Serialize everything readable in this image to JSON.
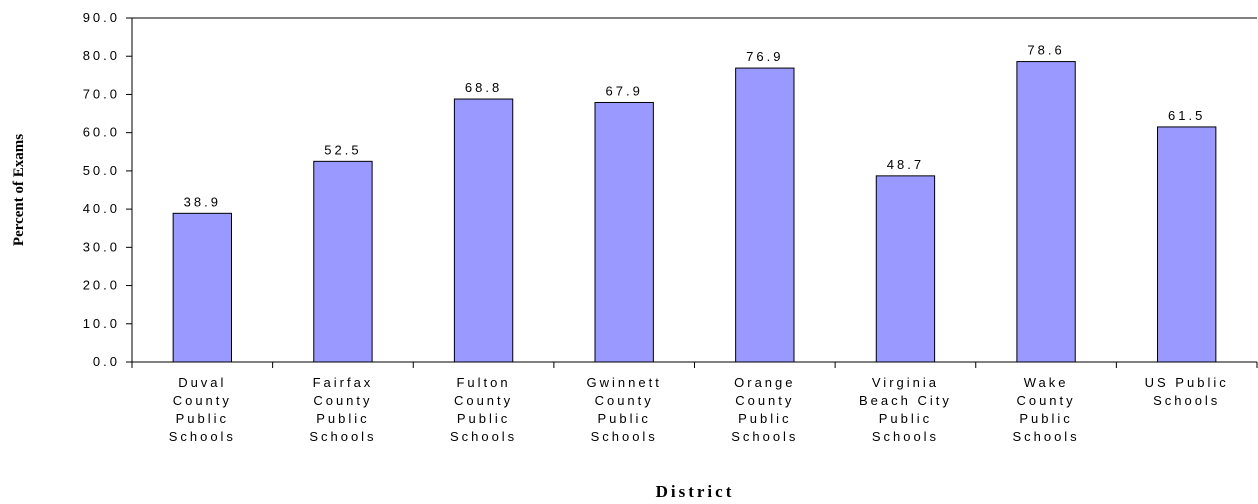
{
  "chart_data": {
    "type": "bar",
    "ylabel": "Percent of Exams",
    "xlabel": "District",
    "ylim": [
      0,
      90
    ],
    "ytick_step": 10,
    "ytick_labels": [
      "0.0",
      "10.0",
      "20.0",
      "30.0",
      "40.0",
      "50.0",
      "60.0",
      "70.0",
      "80.0",
      "90.0"
    ],
    "categories": [
      "Duval County Public Schools",
      "Fairfax County Public Schools",
      "Fulton County Public Schools",
      "Gwinnett County Public Schools",
      "Orange County Public Schools",
      "Virginia Beach City Public Schools",
      "Wake County Public Schools",
      "US Public Schools"
    ],
    "category_lines": [
      [
        "Duval",
        "County",
        "Public",
        "Schools"
      ],
      [
        "Fairfax",
        "County",
        "Public",
        "Schools"
      ],
      [
        "Fulton",
        "County",
        "Public",
        "Schools"
      ],
      [
        "Gwinnett",
        "County",
        "Public",
        "Schools"
      ],
      [
        "Orange",
        "County",
        "Public",
        "Schools"
      ],
      [
        "Virginia",
        "Beach City",
        "Public",
        "Schools"
      ],
      [
        "Wake",
        "County",
        "Public",
        "Schools"
      ],
      [
        "US Public",
        "Schools"
      ]
    ],
    "values": [
      38.9,
      52.5,
      68.8,
      67.9,
      76.9,
      48.7,
      78.6,
      61.5
    ],
    "value_labels": [
      "38.9",
      "52.5",
      "68.8",
      "67.9",
      "76.9",
      "48.7",
      "78.6",
      "61.5"
    ],
    "bar_color": "#9999ff",
    "bar_stroke": "#000000",
    "grid": false,
    "legend": "none"
  }
}
